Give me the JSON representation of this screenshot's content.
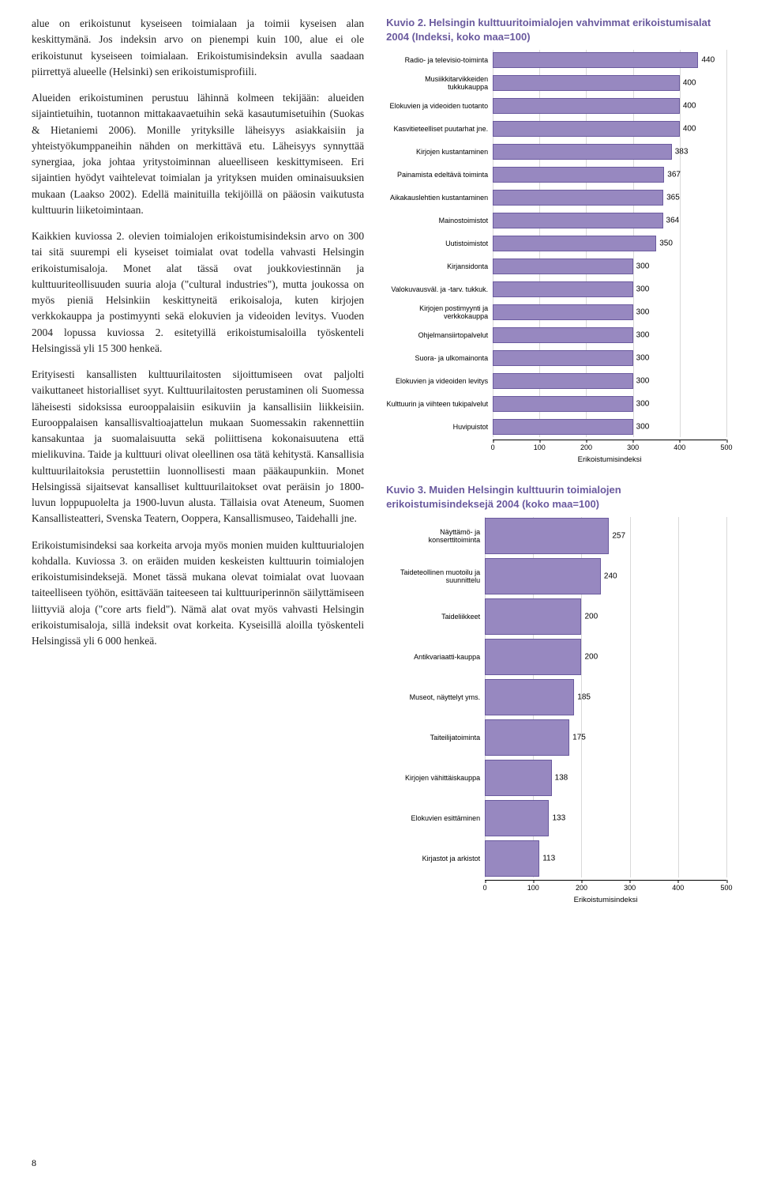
{
  "leftColumn": {
    "p1": "alue on erikoistunut kyseiseen toimialaan ja toimii kyseisen alan keskittymänä. Jos indeksin arvo on pienempi kuin 100, alue ei ole erikoistunut kyseiseen toimialaan. Erikoistumisindeksin avulla saadaan piirrettyä alueelle (Helsinki) sen erikoistumisprofiili.",
    "p2": "Alueiden erikoistuminen perustuu lähinnä kolmeen tekijään: alueiden sijaintietuihin, tuotannon mittakaavaetuihin sekä kasautumisetuihin (Suokas & Hietaniemi 2006). Monille yrityksille läheisyys asiakkaisiin ja yhteistyökumppaneihin nähden on merkittävä etu. Läheisyys synnyttää synergiaa, joka johtaa yritystoiminnan alueelliseen keskittymiseen. Eri sijaintien hyödyt vaihtelevat toimialan ja yrityksen muiden ominaisuuksien mukaan (Laakso 2002). Edellä mainituilla tekijöillä on pääosin vaikutusta kulttuurin liiketoimintaan.",
    "p3": "Kaikkien kuviossa 2. olevien toimialojen erikoistumisindeksin arvo on 300 tai sitä suurempi eli kyseiset toimialat ovat todella vahvasti Helsingin erikoistumisaloja. Monet alat tässä ovat joukkoviestinnän ja kulttuuriteollisuuden suuria aloja (\"cultural industries\"), mutta joukossa on myös pieniä Helsinkiin keskittyneitä erikoisaloja, kuten kirjojen verkkokauppa ja postimyynti sekä elokuvien ja videoiden levitys. Vuoden 2004 lopussa kuviossa 2. esitetyillä erikoistumisaloilla työskenteli Helsingissä yli 15 300 henkeä.",
    "p4": "Erityisesti kansallisten kulttuurilaitosten sijoittumiseen ovat paljolti vaikuttaneet historialliset syyt. Kulttuurilaitosten perustaminen oli Suomessa läheisesti sidoksissa eurooppalaisiin esikuviin ja kansallisiin liikkeisiin. Eurooppalaisen kansallisvaltioajattelun mukaan Suomessakin rakennettiin kansakuntaa ja suomalaisuutta sekä poliittisena kokonaisuutena että mielikuvina. Taide ja kulttuuri olivat oleellinen osa tätä kehitystä. Kansallisia kulttuurilaitoksia perustettiin luonnollisesti maan pääkaupunkiin. Monet Helsingissä sijaitsevat kansalliset kulttuurilaitokset ovat peräisin jo 1800-luvun loppupuolelta ja 1900-luvun alusta. Tällaisia ovat Ateneum, Suomen Kansallisteatteri, Svenska Teatern, Ooppera, Kansallismuseo, Taidehalli jne.",
    "p5": "Erikoistumisindeksi saa korkeita arvoja myös monien muiden kulttuurialojen kohdalla. Kuviossa 3. on eräiden muiden keskeisten kulttuurin toimialojen erikoistumisindeksejä. Monet tässä mukana olevat toimialat ovat luovaan taiteelliseen työhön, esittävään taiteeseen tai kulttuuriperinnön säilyttämiseen liittyviä aloja (\"core arts field\"). Nämä alat ovat myös vahvasti Helsingin erikoistumisaloja, sillä indeksit ovat korkeita. Kyseisillä aloilla työskenteli Helsingissä yli 6 000 henkeä."
  },
  "chart2": {
    "title": "Kuvio 2. Helsingin kulttuuritoimialojen vahvimmat erikoistumisalat 2004 (Indeksi, koko maa=100)",
    "xmax": 500,
    "xtick_step": 100,
    "axisLabel": "Erikoistumisindeksi",
    "barColor": "#9788c0",
    "barBorder": "#6a5a9e",
    "items": [
      {
        "label": "Radio- ja televisio-​toiminta",
        "value": 440
      },
      {
        "label": "Musiikkitarvikkeiden tukkukauppa",
        "value": 400
      },
      {
        "label": "Elokuvien ja videoiden tuotanto",
        "value": 400
      },
      {
        "label": "Kasvitieteelliset puutarhat jne.",
        "value": 400
      },
      {
        "label": "Kirjojen kustantaminen",
        "value": 383
      },
      {
        "label": "Painamista edeltävä toiminta",
        "value": 367
      },
      {
        "label": "Aikakauslehtien kustantaminen",
        "value": 365
      },
      {
        "label": "Mainostoimistot",
        "value": 364
      },
      {
        "label": "Uutistoimistot",
        "value": 350
      },
      {
        "label": "Kirjansidonta",
        "value": 300
      },
      {
        "label": "Valokuvausväl. ja -tarv. tukkuk.",
        "value": 300
      },
      {
        "label": "Kirjojen postimyynti ja verkkokauppa",
        "value": 300
      },
      {
        "label": "Ohjelmansiirtopalvelut",
        "value": 300
      },
      {
        "label": "Suora- ja ulkomainonta",
        "value": 300
      },
      {
        "label": "Elokuvien ja videoiden levitys",
        "value": 300
      },
      {
        "label": "Kulttuurin ja viihteen tukipalvelut",
        "value": 300
      },
      {
        "label": "Huvipuistot",
        "value": 300
      }
    ]
  },
  "chart3": {
    "title": "Kuvio 3. Muiden Helsingin kulttuurin toimialojen erikoistumisindeksejä 2004 (koko maa=100)",
    "xmax": 500,
    "xtick_step": 100,
    "axisLabel": "Erikoistumisindeksi",
    "barColor": "#9788c0",
    "barBorder": "#6a5a9e",
    "items": [
      {
        "label": "Näyttämö- ja konserttitoiminta",
        "value": 257
      },
      {
        "label": "Taideteollinen muotoilu ja suunnittelu",
        "value": 240
      },
      {
        "label": "Taideliikkeet",
        "value": 200
      },
      {
        "label": "Antikvariaatti-​kauppa",
        "value": 200
      },
      {
        "label": "Museot, näyttelyt yms.",
        "value": 185
      },
      {
        "label": "Taiteilijatoiminta",
        "value": 175
      },
      {
        "label": "Kirjojen vähittäiskauppa",
        "value": 138
      },
      {
        "label": "Elokuvien esittäminen",
        "value": 133
      },
      {
        "label": "Kirjastot ja arkistot",
        "value": 113
      }
    ]
  },
  "pageNumber": "8"
}
